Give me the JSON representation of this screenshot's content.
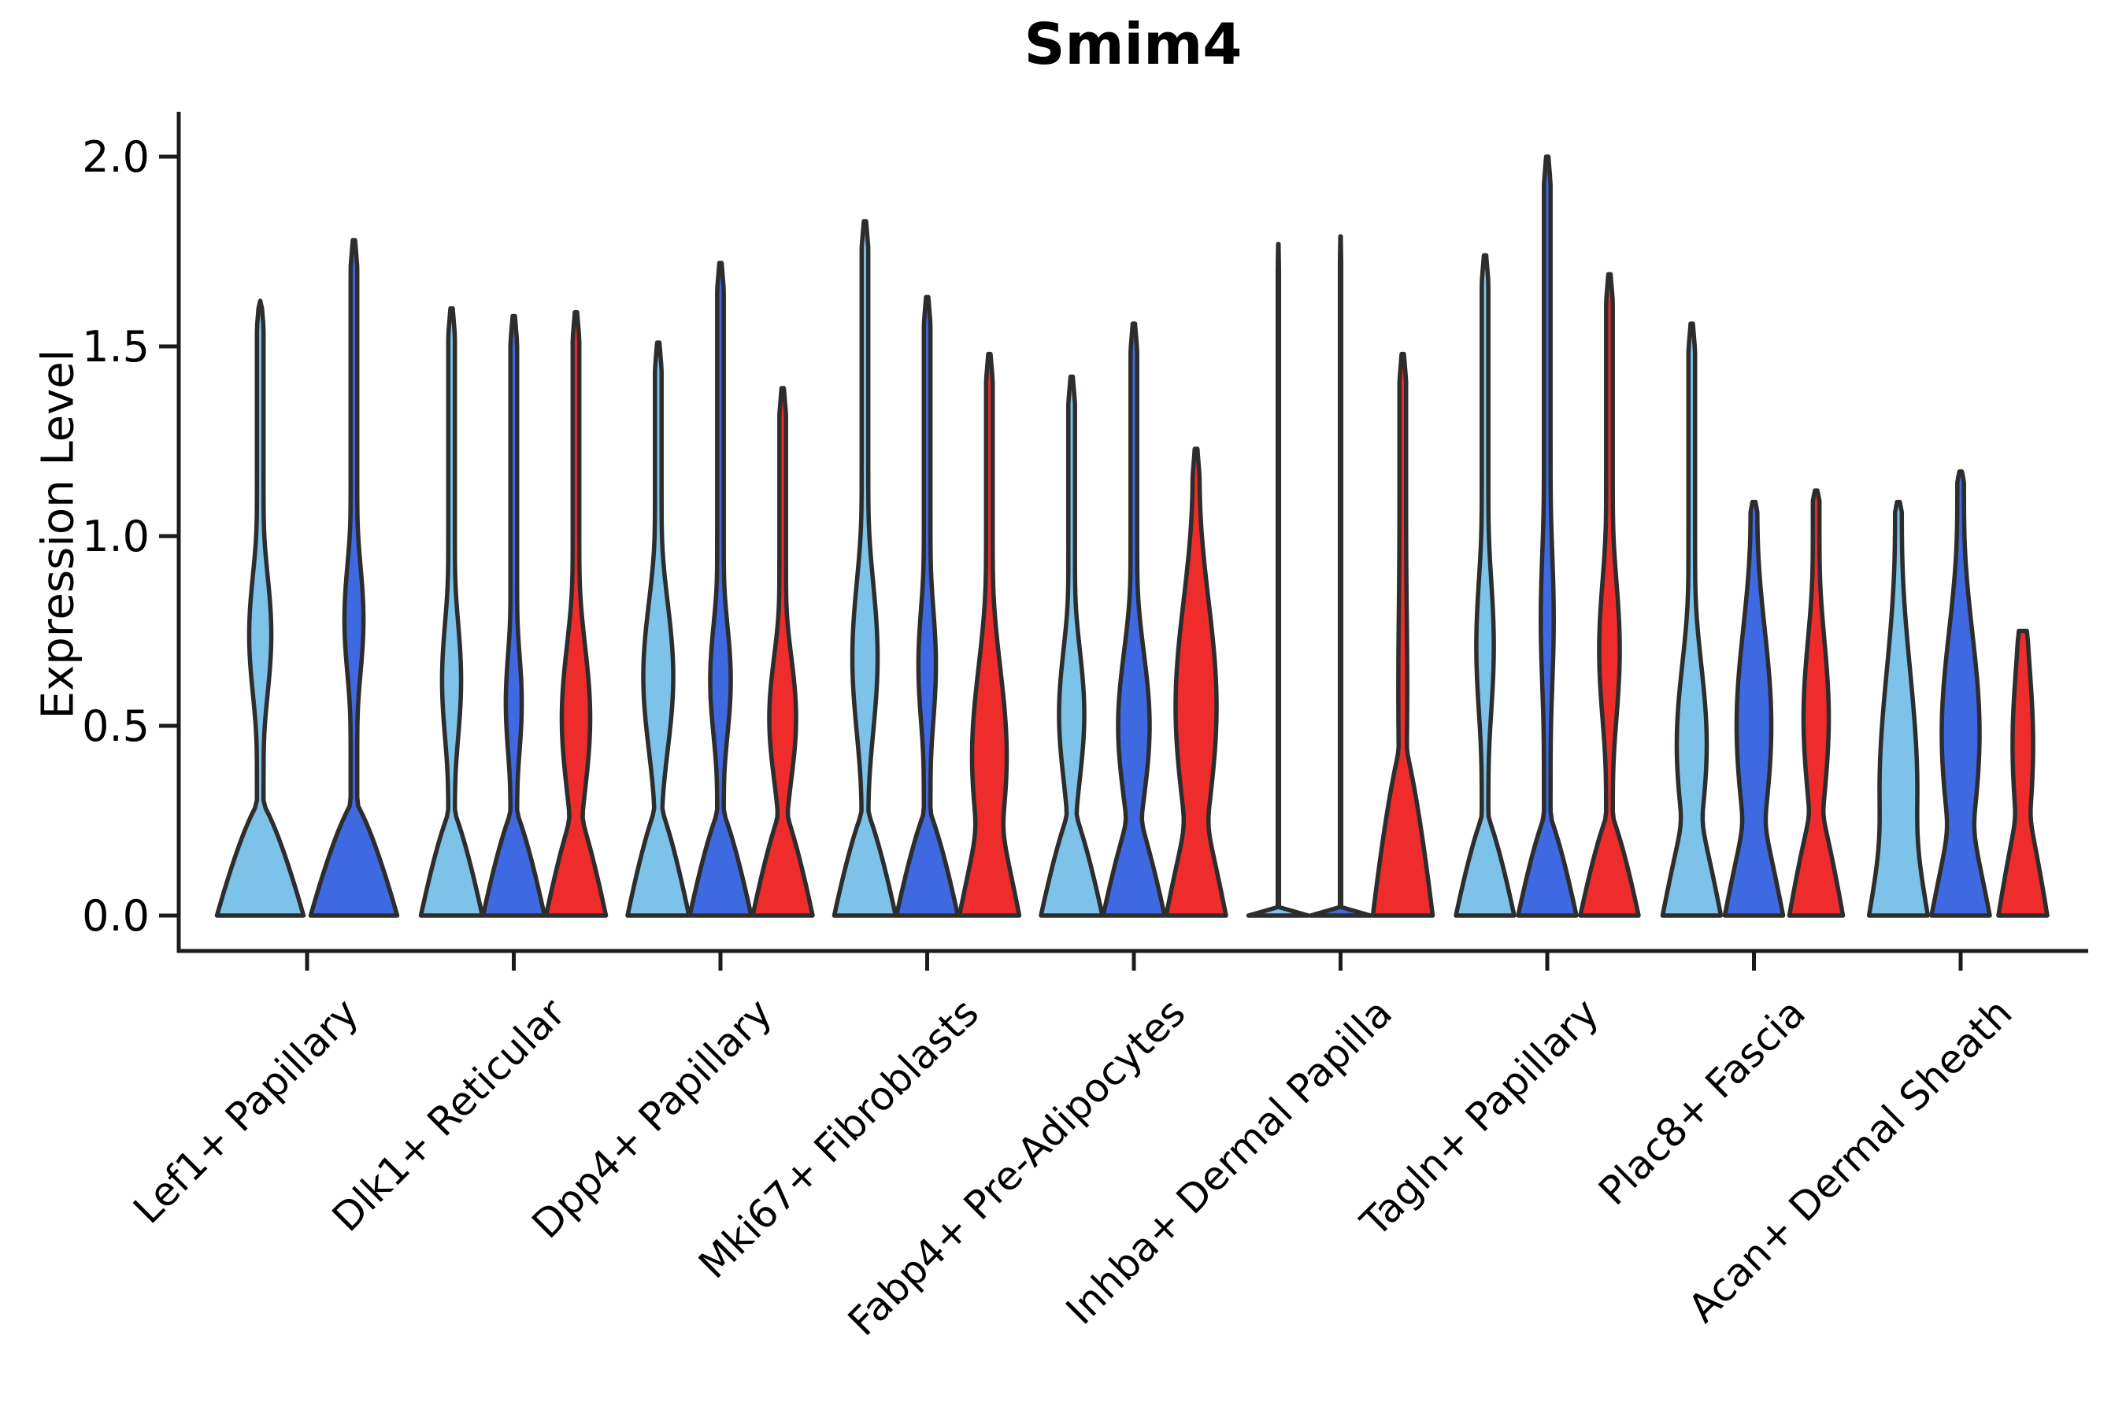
{
  "chart_data": {
    "type": "violin",
    "title": "Smim4",
    "ylabel": "Expression Level",
    "xlabel": "",
    "ylim": [
      -0.09,
      2.12
    ],
    "yticks": [
      "0.0",
      "0.5",
      "1.0",
      "1.5",
      "2.0"
    ],
    "ytick_values": [
      0.0,
      0.5,
      1.0,
      1.5,
      2.0
    ],
    "grid": false,
    "legend": null,
    "palette": {
      "light_blue": "#7DC2E9",
      "dark_blue": "#3F69E1",
      "red": "#EE2C2C",
      "outline": "#2D2D2D",
      "axis": "#1B1B1B"
    },
    "categories": [
      "Lef1+ Papillary",
      "Dlk1+ Reticular",
      "Dpp4+ Papillary",
      "Mki67+ Fibroblasts",
      "Fabp4+ Pre-Adipocytes",
      "Inhba+ Dermal Papilla",
      "Tagln+ Papillary",
      "Plac8+ Fascia",
      "Acan+ Dermal Sheath"
    ],
    "groups": [
      {
        "label": "Lef1+ Papillary",
        "violins": [
          {
            "color": "light_blue",
            "max": 1.62,
            "wb": 55,
            "vb": 0.3,
            "bp": 0.75,
            "bc": 0.74,
            "bw": 14,
            "bs": 0.17
          },
          {
            "color": "dark_blue",
            "max": 1.78,
            "wb": 55,
            "vb": 0.3,
            "bp": 0.75,
            "bc": 0.78,
            "bw": 12,
            "bs": 0.16
          }
        ]
      },
      {
        "label": "Dlk1+ Reticular",
        "violins": [
          {
            "color": "light_blue",
            "max": 1.6,
            "wb": 39,
            "vb": 0.28,
            "bp": 0.75,
            "bc": 0.62,
            "bw": 12,
            "bs": 0.17
          },
          {
            "color": "dark_blue",
            "max": 1.58,
            "wb": 39,
            "vb": 0.28,
            "bp": 0.75,
            "bc": 0.56,
            "bw": 10,
            "bs": 0.15
          },
          {
            "color": "red",
            "max": 1.59,
            "wb": 38,
            "vb": 0.28,
            "bp": 0.75,
            "bc": 0.52,
            "bw": 18,
            "bs": 0.2
          }
        ]
      },
      {
        "label": "Dpp4+ Papillary",
        "violins": [
          {
            "color": "light_blue",
            "max": 1.51,
            "wb": 39,
            "vb": 0.29,
            "bp": 0.75,
            "bc": 0.63,
            "bw": 19,
            "bs": 0.2
          },
          {
            "color": "dark_blue",
            "max": 1.72,
            "wb": 39,
            "vb": 0.28,
            "bp": 0.75,
            "bc": 0.62,
            "bw": 13,
            "bs": 0.16
          },
          {
            "color": "red",
            "max": 1.39,
            "wb": 38,
            "vb": 0.28,
            "bp": 0.75,
            "bc": 0.52,
            "bw": 17,
            "bs": 0.17
          }
        ]
      },
      {
        "label": "Mki67+ Fibroblasts",
        "violins": [
          {
            "color": "light_blue",
            "max": 1.83,
            "wb": 39,
            "vb": 0.28,
            "bp": 0.75,
            "bc": 0.68,
            "bw": 16,
            "bs": 0.21
          },
          {
            "color": "dark_blue",
            "max": 1.63,
            "wb": 39,
            "vb": 0.28,
            "bp": 0.75,
            "bc": 0.66,
            "bw": 11,
            "bs": 0.17
          },
          {
            "color": "red",
            "max": 1.48,
            "wb": 38,
            "vb": 0.3,
            "bp": 0.75,
            "bc": 0.42,
            "bw": 22,
            "bs": 0.24
          }
        ]
      },
      {
        "label": "Fabp4+ Pre-Adipocytes",
        "violins": [
          {
            "color": "light_blue",
            "max": 1.42,
            "wb": 39,
            "vb": 0.28,
            "bp": 0.75,
            "bc": 0.53,
            "bw": 16,
            "bs": 0.18
          },
          {
            "color": "dark_blue",
            "max": 1.56,
            "wb": 39,
            "vb": 0.28,
            "bp": 0.75,
            "bc": 0.5,
            "bw": 20,
            "bs": 0.2
          },
          {
            "color": "red",
            "max": 1.23,
            "wb": 38,
            "vb": 0.3,
            "bp": 0.75,
            "bc": 0.55,
            "bw": 26,
            "bs": 0.28
          }
        ]
      },
      {
        "label": "Inhba+ Dermal Papilla",
        "violins": [
          {
            "color": "light_blue",
            "max": 1.77,
            "wb": 38,
            "vb": 0.02,
            "bp": 0.5,
            "bc": 0.0,
            "bw": 0,
            "bs": 0.2,
            "spike": 0.8
          },
          {
            "color": "dark_blue",
            "max": 1.79,
            "wb": 38,
            "vb": 0.02,
            "bp": 0.5,
            "bc": 0.0,
            "bw": 0,
            "bs": 0.2,
            "spike": 0.8
          },
          {
            "color": "red",
            "max": 1.48,
            "wb": 38,
            "vb": 0.45,
            "bp": 0.7,
            "bc": 0.6,
            "bw": 5,
            "bs": 0.3
          }
        ]
      },
      {
        "label": "Tagln+ Papillary",
        "violins": [
          {
            "color": "light_blue",
            "max": 1.74,
            "wb": 37,
            "vb": 0.27,
            "bp": 0.75,
            "bc": 0.71,
            "bw": 11,
            "bs": 0.2
          },
          {
            "color": "dark_blue",
            "max": 2.0,
            "wb": 37,
            "vb": 0.27,
            "bp": 0.75,
            "bc": 0.78,
            "bw": 8,
            "bs": 0.22
          },
          {
            "color": "red",
            "max": 1.69,
            "wb": 37,
            "vb": 0.27,
            "bp": 0.75,
            "bc": 0.7,
            "bw": 13,
            "bs": 0.2
          }
        ]
      },
      {
        "label": "Plac8+ Fascia",
        "violins": [
          {
            "color": "light_blue",
            "max": 1.56,
            "wb": 37,
            "vb": 0.3,
            "bp": 0.75,
            "bc": 0.45,
            "bw": 19,
            "bs": 0.22
          },
          {
            "color": "dark_blue",
            "max": 1.09,
            "wb": 37,
            "vb": 0.3,
            "bp": 0.75,
            "bc": 0.5,
            "bw": 22,
            "bs": 0.26,
            "blunt": true
          },
          {
            "color": "red",
            "max": 1.12,
            "wb": 34,
            "vb": 0.3,
            "bp": 0.75,
            "bc": 0.52,
            "bw": 16,
            "bs": 0.22,
            "blunt": true
          }
        ]
      },
      {
        "label": "Acan+ Dermal Sheath",
        "violins": [
          {
            "color": "light_blue",
            "max": 1.09,
            "wb": 37,
            "vb": 0.32,
            "bp": 0.75,
            "bc": 0.33,
            "bw": 24,
            "bs": 0.32,
            "blunt": true
          },
          {
            "color": "dark_blue",
            "max": 1.17,
            "wb": 37,
            "vb": 0.3,
            "bp": 0.75,
            "bc": 0.48,
            "bw": 24,
            "bs": 0.27,
            "blunt": true
          },
          {
            "color": "red",
            "max": 0.75,
            "wb": 31,
            "vb": 0.3,
            "bp": 0.75,
            "bc": 0.45,
            "bw": 13,
            "bs": 0.22,
            "blunt": true
          }
        ]
      }
    ]
  }
}
